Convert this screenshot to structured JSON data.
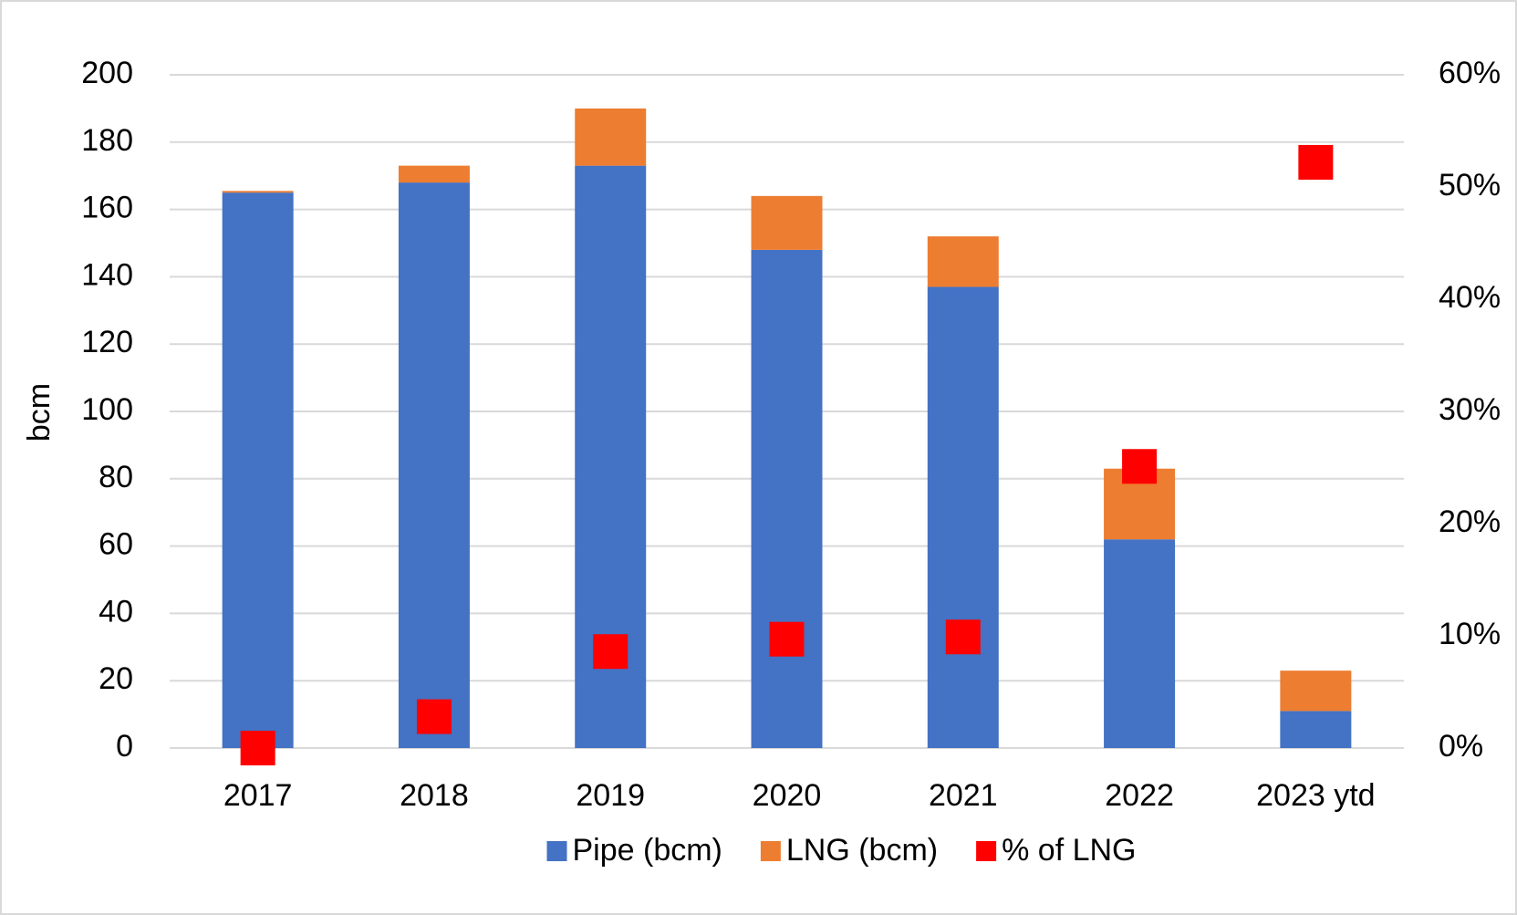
{
  "chart_data": {
    "type": "bar",
    "categories": [
      "2017",
      "2018",
      "2019",
      "2020",
      "2021",
      "2022",
      "2023 ytd"
    ],
    "y_label": "bcm",
    "series": [
      {
        "name": "Pipe (bcm)",
        "color": "#4472c4",
        "values": [
          165,
          168,
          173,
          148,
          137,
          62,
          11
        ]
      },
      {
        "name": "LNG (bcm)",
        "color": "#ed7d31",
        "values": [
          0.5,
          5,
          17,
          16,
          15,
          21,
          12
        ]
      },
      {
        "name": "% of LNG",
        "color": "#ff0000",
        "type": "scatter",
        "axis": "y2",
        "values": [
          0,
          2.8,
          8.6,
          9.7,
          9.9,
          25.1,
          52.2
        ]
      }
    ],
    "stacked": true,
    "ylim": [
      0,
      200
    ],
    "yticks": [
      0,
      20,
      40,
      60,
      80,
      100,
      120,
      140,
      160,
      180,
      200
    ],
    "y2lim": [
      0,
      60
    ],
    "y2ticks": [
      {
        "value": 0,
        "label": "0%"
      },
      {
        "value": 10,
        "label": "10%"
      },
      {
        "value": 20,
        "label": "20%"
      },
      {
        "value": 30,
        "label": "30%"
      },
      {
        "value": 40,
        "label": "40%"
      },
      {
        "value": 50,
        "label": "50%"
      },
      {
        "value": 60,
        "label": "60%"
      }
    ],
    "grid": true,
    "legend": "bottom"
  }
}
